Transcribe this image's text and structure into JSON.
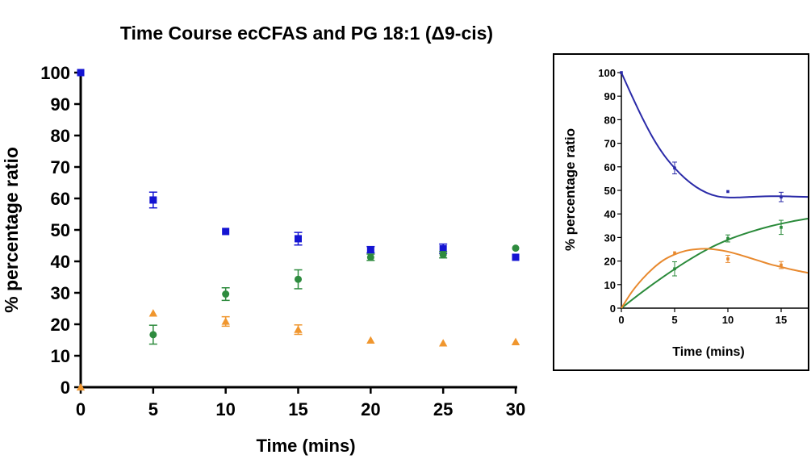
{
  "chart_data": [
    {
      "type": "scatter",
      "title": "Time Course ecCFAS and PG 18:1 (Δ9-cis)",
      "xlabel": "Time (mins)",
      "ylabel": "% percentage ratio",
      "xlim": [
        0,
        30
      ],
      "ylim": [
        0,
        100
      ],
      "xticks": [
        "0",
        "5",
        "10",
        "15",
        "20",
        "25",
        "30"
      ],
      "yticks": [
        "0",
        "10",
        "20",
        "30",
        "40",
        "50",
        "60",
        "70",
        "80",
        "90",
        "100"
      ],
      "grid": false,
      "series": [
        {
          "color": "#1414d2",
          "marker": "square",
          "x": [
            0,
            5,
            10,
            15,
            20,
            25,
            30
          ],
          "y": [
            100,
            59.5,
            49.5,
            47.2,
            43.7,
            44.0,
            41.3
          ],
          "err": [
            0,
            2.5,
            0,
            2,
            1,
            1.5,
            0
          ]
        },
        {
          "color": "#2e8b3e",
          "marker": "circle",
          "x": [
            5,
            10,
            15,
            20,
            25,
            30
          ],
          "y": [
            16.7,
            29.6,
            34.3,
            41.3,
            42.1,
            44.2
          ],
          "err": [
            3,
            2,
            3,
            1,
            1,
            0
          ]
        },
        {
          "color": "#f0962e",
          "marker": "triangle",
          "x": [
            0,
            5,
            10,
            15,
            20,
            25,
            30
          ],
          "y": [
            0,
            23.5,
            20.9,
            18.3,
            14.9,
            14.0,
            14.4
          ],
          "err": [
            0,
            0,
            1.5,
            1.5,
            0,
            0,
            0
          ]
        }
      ]
    },
    {
      "type": "line",
      "title": "",
      "xlabel": "Time (mins)",
      "ylabel": "% percentage ratio",
      "xlim": [
        0,
        17.5
      ],
      "ylim": [
        0,
        100
      ],
      "xticks": [
        "0",
        "5",
        "10",
        "15"
      ],
      "yticks": [
        "0",
        "10",
        "20",
        "30",
        "40",
        "50",
        "60",
        "70",
        "80",
        "90",
        "100"
      ],
      "grid": false,
      "series": [
        {
          "color": "#2a2aa8",
          "x": [
            0,
            5,
            10,
            15
          ],
          "y": [
            100,
            59.5,
            49.5,
            47.2
          ],
          "err": [
            0,
            2.5,
            0,
            2
          ],
          "fit_x": [
            0,
            1,
            2,
            3,
            4,
            5,
            6,
            7,
            8,
            9,
            10,
            11,
            12,
            13,
            14,
            15,
            16,
            17.5
          ],
          "fit_y": [
            100,
            90,
            80.5,
            72,
            65,
            59.5,
            55,
            51.5,
            49,
            47.5,
            47,
            47,
            47.2,
            47.4,
            47.5,
            47.5,
            47.4,
            47.2
          ]
        },
        {
          "color": "#2a8a3a",
          "x": [
            5,
            10,
            15
          ],
          "y": [
            16.7,
            29.6,
            34.3
          ],
          "err": [
            3,
            1.5,
            3
          ],
          "fit_x": [
            0,
            2,
            4,
            6,
            8,
            10,
            12,
            14,
            16,
            17.5
          ],
          "fit_y": [
            0,
            7,
            13.5,
            19.5,
            24.8,
            29,
            32.2,
            34.8,
            36.8,
            38
          ]
        },
        {
          "color": "#e8892e",
          "x": [
            5,
            10,
            15
          ],
          "y": [
            23.5,
            20.9,
            18.3
          ],
          "err": [
            0,
            1.5,
            1.5
          ],
          "fit_x": [
            0,
            1,
            2,
            3,
            4,
            5,
            6,
            7,
            8,
            9,
            10,
            11,
            12,
            13,
            14,
            15,
            16,
            17.5
          ],
          "fit_y": [
            0,
            7,
            12.5,
            17,
            20.5,
            22.8,
            24.3,
            25,
            25.2,
            24.8,
            24,
            22.8,
            21.4,
            20,
            18.6,
            17.5,
            16.4,
            15
          ]
        }
      ]
    }
  ]
}
